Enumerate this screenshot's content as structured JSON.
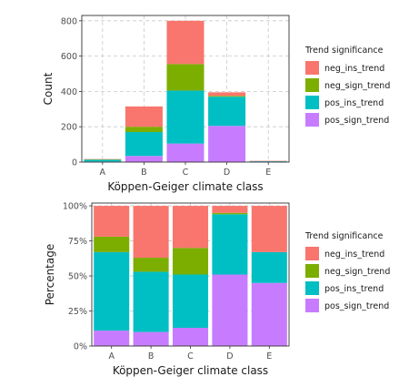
{
  "colors": {
    "neg_ins_trend": "#F8766D",
    "neg_sign_trend": "#7CAE00",
    "pos_ins_trend": "#00BFC4",
    "pos_sign_trend": "#C77CFF",
    "grid": "#c8c8c8",
    "panel_border": "#333333",
    "text": "#1a1a1a",
    "tick_text": "#4d4d4d"
  },
  "chart_data": [
    {
      "type": "bar",
      "stacked": true,
      "xlabel": "Köppen-Geiger climate class",
      "ylabel": "Count",
      "ylim": [
        0,
        830
      ],
      "yticks": [
        0,
        200,
        400,
        600,
        800
      ],
      "ytick_labels": [
        "0",
        "200",
        "400",
        "600",
        "800"
      ],
      "grid": true,
      "legend": "right",
      "legend_title": "Trend significance",
      "categories": [
        "A",
        "B",
        "C",
        "D",
        "E"
      ],
      "series": [
        {
          "name": "neg_ins_trend",
          "values": [
            2,
            115,
            245,
            20,
            2
          ]
        },
        {
          "name": "neg_sign_trend",
          "values": [
            2,
            30,
            150,
            5,
            0
          ]
        },
        {
          "name": "pos_ins_trend",
          "values": [
            10,
            135,
            300,
            165,
            2
          ]
        },
        {
          "name": "pos_sign_trend",
          "values": [
            3,
            35,
            105,
            205,
            3
          ]
        }
      ]
    },
    {
      "type": "bar",
      "stacked": true,
      "xlabel": "Köppen-Geiger climate class",
      "ylabel": "Percentage",
      "ylim": [
        0,
        1.02
      ],
      "yticks": [
        0,
        0.25,
        0.5,
        0.75,
        1.0
      ],
      "ytick_labels": [
        "0%",
        "25%",
        "50%",
        "75%",
        "100%"
      ],
      "grid": true,
      "legend": "right",
      "legend_title": "Trend significance",
      "categories": [
        "A",
        "B",
        "C",
        "D",
        "E"
      ],
      "series": [
        {
          "name": "neg_ins_trend",
          "values": [
            0.22,
            0.37,
            0.3,
            0.05,
            0.33
          ]
        },
        {
          "name": "neg_sign_trend",
          "values": [
            0.11,
            0.1,
            0.19,
            0.01,
            0.0
          ]
        },
        {
          "name": "pos_ins_trend",
          "values": [
            0.56,
            0.43,
            0.38,
            0.43,
            0.22
          ]
        },
        {
          "name": "pos_sign_trend",
          "values": [
            0.11,
            0.1,
            0.13,
            0.51,
            0.45
          ]
        }
      ]
    }
  ]
}
